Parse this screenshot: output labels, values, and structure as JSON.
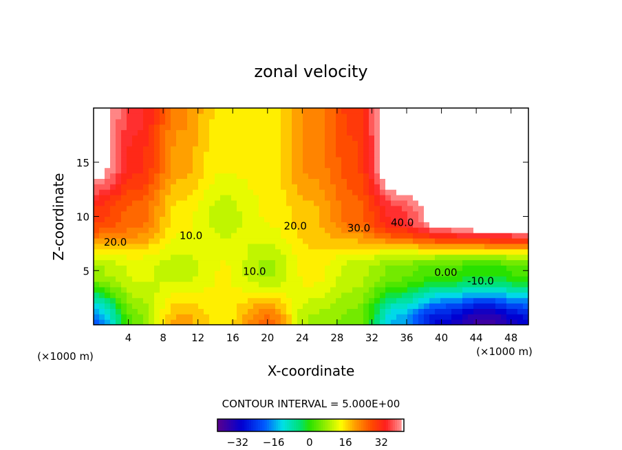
{
  "chart_data": {
    "type": "heatmap",
    "title": "zonal velocity",
    "xlabel": "X-coordinate",
    "ylabel": "Z-coordinate",
    "x_unit_left": "(×1000 m)",
    "x_unit_right": "(×1000 m)",
    "xlim": [
      0,
      50
    ],
    "ylim": [
      0,
      20
    ],
    "x_ticks": [
      4,
      8,
      12,
      16,
      20,
      24,
      28,
      32,
      36,
      40,
      44,
      48
    ],
    "y_ticks": [
      5,
      10,
      15
    ],
    "grid_x": [
      0,
      5,
      10,
      15,
      20,
      25,
      30,
      35,
      40,
      45,
      50
    ],
    "grid_z": [
      0,
      5,
      10,
      15,
      20
    ],
    "values": [
      [
        -20,
        5,
        20,
        15,
        25,
        8,
        5,
        -15,
        -30,
        -38,
        -30
      ],
      [
        8,
        12,
        10,
        14,
        8,
        15,
        10,
        5,
        2,
        0,
        2
      ],
      [
        30,
        25,
        15,
        10,
        14,
        18,
        25,
        35,
        45,
        50,
        50
      ],
      [
        45,
        32,
        20,
        14,
        15,
        22,
        28,
        50,
        50,
        50,
        50
      ],
      [
        45,
        35,
        22,
        15,
        15,
        22,
        30,
        50,
        50,
        50,
        50
      ]
    ],
    "contour_labels": [
      {
        "text": "20.0",
        "x": 2.5,
        "z": 7.3
      },
      {
        "text": "10.0",
        "x": 11.2,
        "z": 7.9
      },
      {
        "text": "10.0",
        "x": 18.5,
        "z": 4.6
      },
      {
        "text": "20.0",
        "x": 23.2,
        "z": 8.8
      },
      {
        "text": "30.0",
        "x": 30.5,
        "z": 8.6
      },
      {
        "text": "40.0",
        "x": 35.5,
        "z": 9.1
      },
      {
        "text": "0.00",
        "x": 40.5,
        "z": 4.5
      },
      {
        "text": "-10.0",
        "x": 44.5,
        "z": 3.7
      }
    ],
    "contour_interval_text": "CONTOUR INTERVAL = 5.000E+00",
    "colorbar": {
      "range": [
        -41,
        42
      ],
      "ticks": [
        -32,
        -16,
        0,
        16,
        32
      ],
      "tick_labels": [
        "−32",
        "−16",
        "0",
        "16",
        "32"
      ]
    }
  }
}
